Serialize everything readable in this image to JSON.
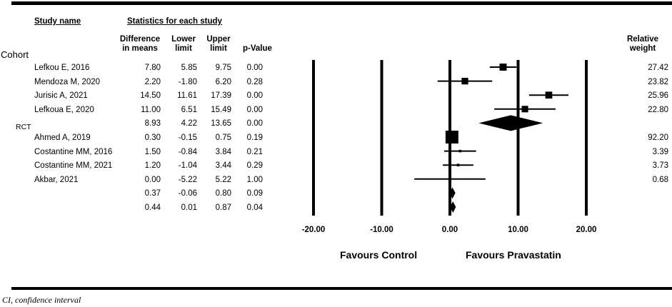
{
  "headers": {
    "study_name": "Study name",
    "stats": "Statistics for each study",
    "diff_line1": "Difference",
    "diff_line2": "in means",
    "lower_line1": "Lower",
    "lower_line2": "limit",
    "upper_line1": "Upper",
    "upper_line2": "limit",
    "pvalue": "p-Value",
    "weight_line1": "Relative",
    "weight_line2": "weight"
  },
  "groups": [
    {
      "label": "Cohort"
    },
    {
      "label": "RCT"
    }
  ],
  "favours": {
    "left": "Favours Control",
    "right": "Favours Pravastatin"
  },
  "footnote": "CI, confidence interval",
  "chart_data": {
    "type": "forest",
    "x_ticks": [
      "-20.00",
      "-10.00",
      "0.00",
      "10.00",
      "20.00"
    ],
    "xlim": [
      -20,
      20
    ],
    "rows": [
      {
        "name": "Lefkou E, 2016",
        "diff": "7.80",
        "lower": "5.85",
        "upper": "9.75",
        "p": "0.00",
        "weight": "27.42",
        "d": 7.8,
        "lo": 5.85,
        "hi": 9.75,
        "w": 27.42,
        "kind": "study"
      },
      {
        "name": "Mendoza M, 2020",
        "diff": "2.20",
        "lower": "-1.80",
        "upper": "6.20",
        "p": "0.28",
        "weight": "23.82",
        "d": 2.2,
        "lo": -1.8,
        "hi": 6.2,
        "w": 23.82,
        "kind": "study"
      },
      {
        "name": "Jurisic A, 2021",
        "diff": "14.50",
        "lower": "11.61",
        "upper": "17.39",
        "p": "0.00",
        "weight": "25.96",
        "d": 14.5,
        "lo": 11.61,
        "hi": 17.39,
        "w": 25.96,
        "kind": "study"
      },
      {
        "name": "Lefkoua E, 2020",
        "diff": "11.00",
        "lower": "6.51",
        "upper": "15.49",
        "p": "0.00",
        "weight": "22.80",
        "d": 11.0,
        "lo": 6.51,
        "hi": 15.49,
        "w": 22.8,
        "kind": "study"
      },
      {
        "name": "",
        "diff": "8.93",
        "lower": "4.22",
        "upper": "13.65",
        "p": "0.00",
        "weight": "",
        "d": 8.93,
        "lo": 4.22,
        "hi": 13.65,
        "kind": "summary"
      },
      {
        "name": "Ahmed A, 2019",
        "diff": "0.30",
        "lower": "-0.15",
        "upper": "0.75",
        "p": "0.19",
        "weight": "92.20",
        "d": 0.3,
        "lo": -0.15,
        "hi": 0.75,
        "w": 92.2,
        "kind": "study"
      },
      {
        "name": "Costantine MM, 2016",
        "diff": "1.50",
        "lower": "-0.84",
        "upper": "3.84",
        "p": "0.21",
        "weight": "3.39",
        "d": 1.5,
        "lo": -0.84,
        "hi": 3.84,
        "w": 3.39,
        "kind": "study"
      },
      {
        "name": "Costantine MM, 2021",
        "diff": "1.20",
        "lower": "-1.04",
        "upper": "3.44",
        "p": "0.29",
        "weight": "3.73",
        "d": 1.2,
        "lo": -1.04,
        "hi": 3.44,
        "w": 3.73,
        "kind": "study"
      },
      {
        "name": "Akbar, 2021",
        "diff": "0.00",
        "lower": "-5.22",
        "upper": "5.22",
        "p": "1.00",
        "weight": "0.68",
        "d": 0.0,
        "lo": -5.22,
        "hi": 5.22,
        "w": 0.68,
        "kind": "study"
      },
      {
        "name": "",
        "diff": "0.37",
        "lower": "-0.06",
        "upper": "0.80",
        "p": "0.09",
        "weight": "",
        "d": 0.37,
        "lo": -0.06,
        "hi": 0.8,
        "kind": "summary"
      },
      {
        "name": "",
        "diff": "0.44",
        "lower": "0.01",
        "upper": "0.87",
        "p": "0.04",
        "weight": "",
        "d": 0.44,
        "lo": 0.01,
        "hi": 0.87,
        "kind": "summary"
      }
    ]
  }
}
